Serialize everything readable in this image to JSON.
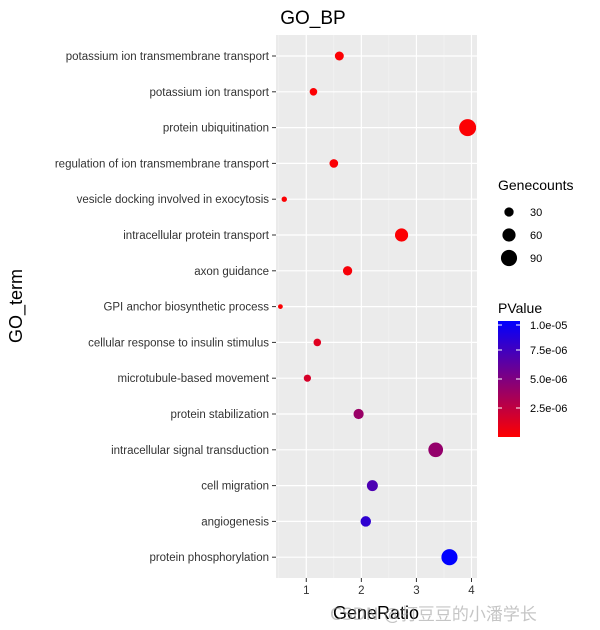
{
  "chart_data": {
    "type": "scatter",
    "title": "GO_BP",
    "xlabel": "GeneRatio",
    "ylabel": "GO_term",
    "xlim": [
      0.45,
      4.1
    ],
    "x_ticks": [
      1,
      2,
      3,
      4
    ],
    "grid": true,
    "terms": [
      {
        "term": "potassium ion transmembrane transport",
        "gene_ratio": 1.6,
        "gene_count": 28,
        "pvalue": 1e-07
      },
      {
        "term": "potassium ion transport",
        "gene_ratio": 1.13,
        "gene_count": 20,
        "pvalue": 1e-07
      },
      {
        "term": "protein ubiquitination",
        "gene_ratio": 3.93,
        "gene_count": 100,
        "pvalue": 1e-07
      },
      {
        "term": "regulation of ion transmembrane transport",
        "gene_ratio": 1.5,
        "gene_count": 26,
        "pvalue": 2e-07
      },
      {
        "term": "vesicle docking involved in exocytosis",
        "gene_ratio": 0.6,
        "gene_count": 10,
        "pvalue": 1e-07
      },
      {
        "term": "intracellular protein transport",
        "gene_ratio": 2.73,
        "gene_count": 60,
        "pvalue": 1e-07
      },
      {
        "term": "axon guidance",
        "gene_ratio": 1.75,
        "gene_count": 30,
        "pvalue": 3e-07
      },
      {
        "term": "GPI anchor biosynthetic process",
        "gene_ratio": 0.53,
        "gene_count": 8,
        "pvalue": 1e-07
      },
      {
        "term": "cellular response to insulin stimulus",
        "gene_ratio": 1.2,
        "gene_count": 20,
        "pvalue": 1.2e-06
      },
      {
        "term": "microtubule-based movement",
        "gene_ratio": 1.02,
        "gene_count": 18,
        "pvalue": 1.6e-06
      },
      {
        "term": "protein stabilization",
        "gene_ratio": 1.95,
        "gene_count": 36,
        "pvalue": 4e-06
      },
      {
        "term": "intracellular signal transduction",
        "gene_ratio": 3.35,
        "gene_count": 75,
        "pvalue": 4.2e-06
      },
      {
        "term": "cell migration",
        "gene_ratio": 2.2,
        "gene_count": 42,
        "pvalue": 7e-06
      },
      {
        "term": "angiogenesis",
        "gene_ratio": 2.08,
        "gene_count": 38,
        "pvalue": 8.2e-06
      },
      {
        "term": "protein phosphorylation",
        "gene_ratio": 3.6,
        "gene_count": 90,
        "pvalue": 1e-05
      }
    ],
    "size_legend": {
      "title": "Genecounts",
      "values": [
        30,
        60,
        90
      ],
      "labels": [
        "30",
        "60",
        "90"
      ]
    },
    "color_legend": {
      "title": "PValue",
      "low_color": "#ff0000",
      "high_color": "#0000ff",
      "range": [
        0,
        1e-05
      ],
      "ticks": [
        2.5e-06,
        5e-06,
        7.5e-06,
        1e-05
      ],
      "labels": [
        "2.5e-06",
        "5.0e-06",
        "7.5e-06",
        "1.0e-05"
      ]
    }
  },
  "watermark": "CSDN @打豆豆的小潘学长"
}
